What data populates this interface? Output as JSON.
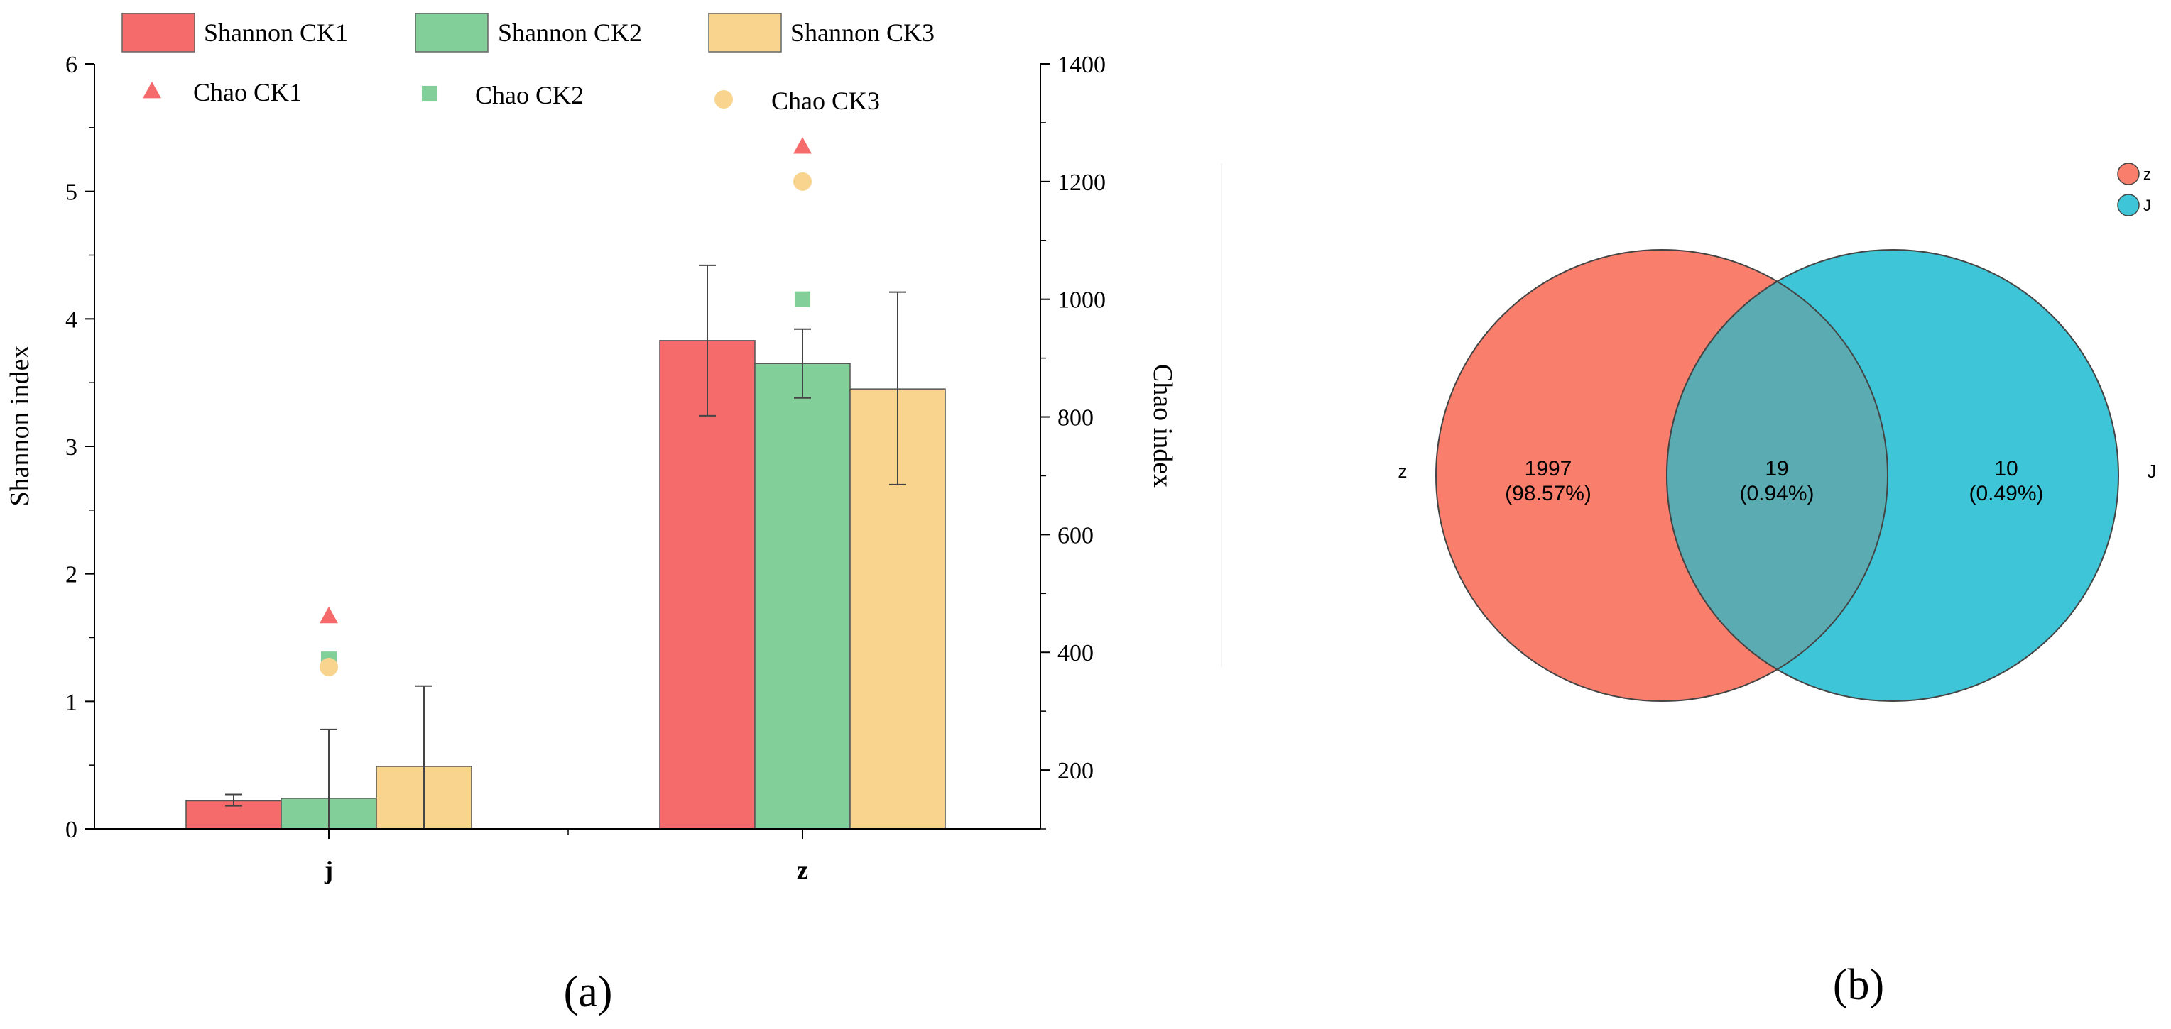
{
  "chart_data": [
    {
      "type": "bar",
      "panel_label": "(a)",
      "categories": [
        "j",
        "z"
      ],
      "xlabel": "",
      "ylabel": "Shannon index",
      "ylim": [
        0,
        6
      ],
      "yticks": [
        "0",
        "1",
        "2",
        "3",
        "4",
        "5",
        "6"
      ],
      "y2label": "Chao index",
      "y2lim": [
        100,
        1400
      ],
      "y2ticks": [
        "200",
        "400",
        "600",
        "800",
        "1000",
        "1200",
        "1400"
      ],
      "series": [
        {
          "name": "Shannon",
          "group": "CK1",
          "color": "#f56b6b",
          "values": [
            0.22,
            3.83
          ],
          "err_low": [
            0.18,
            3.24
          ],
          "err_high": [
            0.27,
            4.42
          ]
        },
        {
          "name": "Shannon",
          "group": "CK2",
          "color": "#82cf9a",
          "values": [
            0.24,
            3.65
          ],
          "err_low": [
            0.0,
            3.38
          ],
          "err_high": [
            0.78,
            3.92
          ]
        },
        {
          "name": "Shannon",
          "group": "CK3",
          "color": "#f8d48f",
          "values": [
            0.49,
            3.45
          ],
          "err_low": [
            0.0,
            2.7
          ],
          "err_high": [
            1.12,
            4.21
          ]
        }
      ],
      "scatter_series": [
        {
          "name": "Chao",
          "group": "CK1",
          "marker": "triangle",
          "color": "#f56b6b",
          "values": [
            462,
            1260
          ]
        },
        {
          "name": "Chao",
          "group": "CK2",
          "marker": "square",
          "color": "#82cf9a",
          "values": [
            388,
            1000
          ]
        },
        {
          "name": "Chao",
          "group": "CK3",
          "marker": "circle",
          "color": "#f8d48f",
          "values": [
            375,
            1200
          ]
        }
      ],
      "legend_position": "top"
    },
    {
      "type": "venn",
      "panel_label": "(b)",
      "sets": [
        {
          "name": "z",
          "color": "#fa7e6c"
        },
        {
          "name": "J",
          "color": "#3ec6d8"
        }
      ],
      "overlap_color": "#5aacb2",
      "regions": [
        {
          "label": "z only",
          "count": "1997",
          "percent": "(98.57%)"
        },
        {
          "label": "z ∩ J",
          "count": "19",
          "percent": "(0.94%)"
        },
        {
          "label": "J only",
          "count": "10",
          "percent": "(0.49%)"
        }
      ],
      "legend_position": "top-right"
    }
  ]
}
